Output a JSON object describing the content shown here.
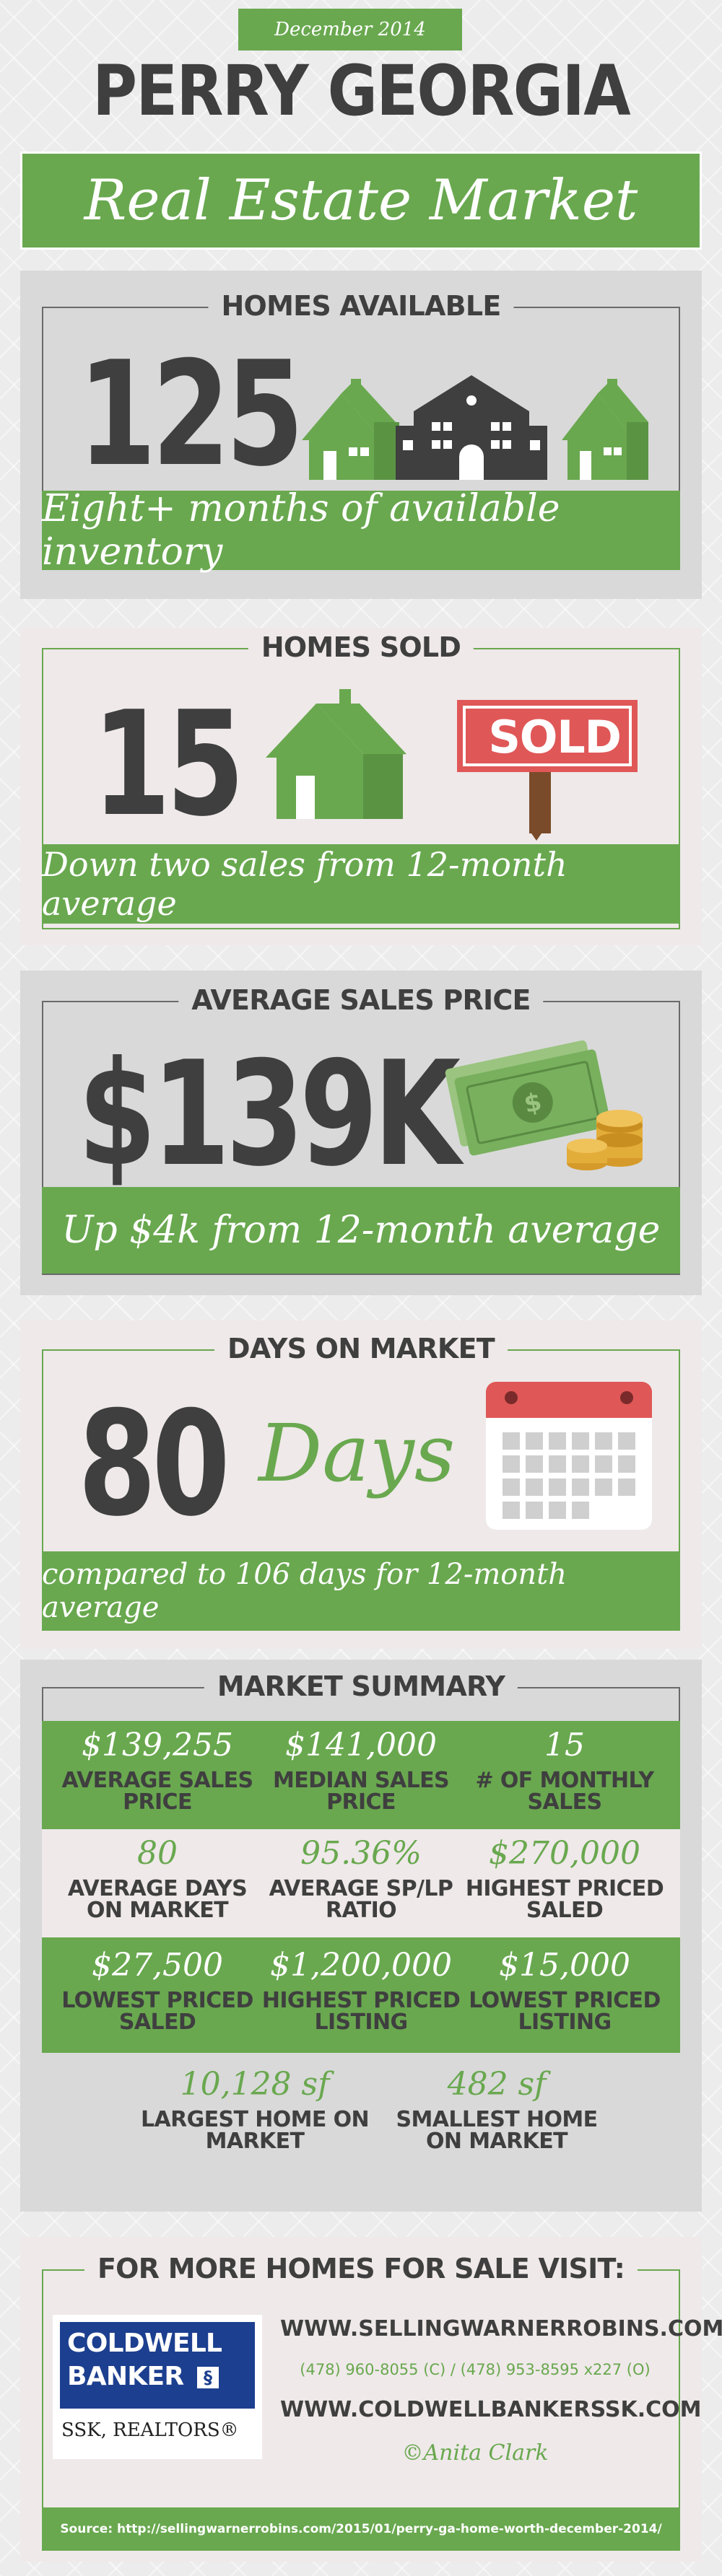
{
  "header": {
    "date": "December 2014",
    "title": "PERRY GEORGIA",
    "subtitle": "Real Estate Market"
  },
  "homes_available": {
    "label": "HOMES AVAILABLE",
    "value": "125",
    "caption": "Eight+ months of available inventory"
  },
  "homes_sold": {
    "label": "HOMES SOLD",
    "value": "15",
    "sign_text": "SOLD",
    "caption": "Down two sales from 12-month average"
  },
  "avg_price": {
    "label": "AVERAGE SALES PRICE",
    "value": "$139K",
    "caption": "Up $4k from 12-month average"
  },
  "days_on_market": {
    "label": "DAYS ON MARKET",
    "value": "80",
    "days_word": "Days",
    "caption": "compared to 106 days for 12-month average"
  },
  "summary": {
    "label": "MARKET SUMMARY",
    "rows": [
      [
        {
          "value": "$139,255",
          "label": "AVERAGE SALES PRICE"
        },
        {
          "value": "$141,000",
          "label": "MEDIAN SALES PRICE"
        },
        {
          "value": "15",
          "label": "# OF MONTHLY SALES"
        }
      ],
      [
        {
          "value": "80",
          "label": "AVERAGE DAYS ON MARKET"
        },
        {
          "value": "95.36%",
          "label": "AVERAGE SP/LP RATIO"
        },
        {
          "value": "$270,000",
          "label": "HIGHEST PRICED SALED"
        }
      ],
      [
        {
          "value": "$27,500",
          "label": "LOWEST PRICED SALED"
        },
        {
          "value": "$1,200,000",
          "label": "HIGHEST PRICED LISTING"
        },
        {
          "value": "$15,000",
          "label": "LOWEST PRICED LISTING"
        }
      ],
      [
        {
          "value": "10,128 sf",
          "label": "LARGEST HOME ON MARKET"
        },
        {
          "value": "482 sf",
          "label": "SMALLEST HOME ON MARKET"
        }
      ]
    ]
  },
  "footer": {
    "label": "FOR MORE HOMES FOR SALE VISIT:",
    "logo_line1": "COLDWELL",
    "logo_line2": "BANKER",
    "logo_sub": "SSK, REALTORS®",
    "url1": "WWW.SELLINGWARNERROBINS.COM",
    "phones": "(478) 960-8055 (C) / (478) 953-8595 x227 (O)",
    "url2": "WWW.COLDWELLBANKERSSK.COM",
    "author": "©Anita Clark",
    "source": "Source: http://sellingwarnerrobins.com/2015/01/perry-ga-home-worth-december-2014/"
  },
  "colors": {
    "green": "#69a84f",
    "dark": "#3f3f3f",
    "red": "#e05757"
  }
}
